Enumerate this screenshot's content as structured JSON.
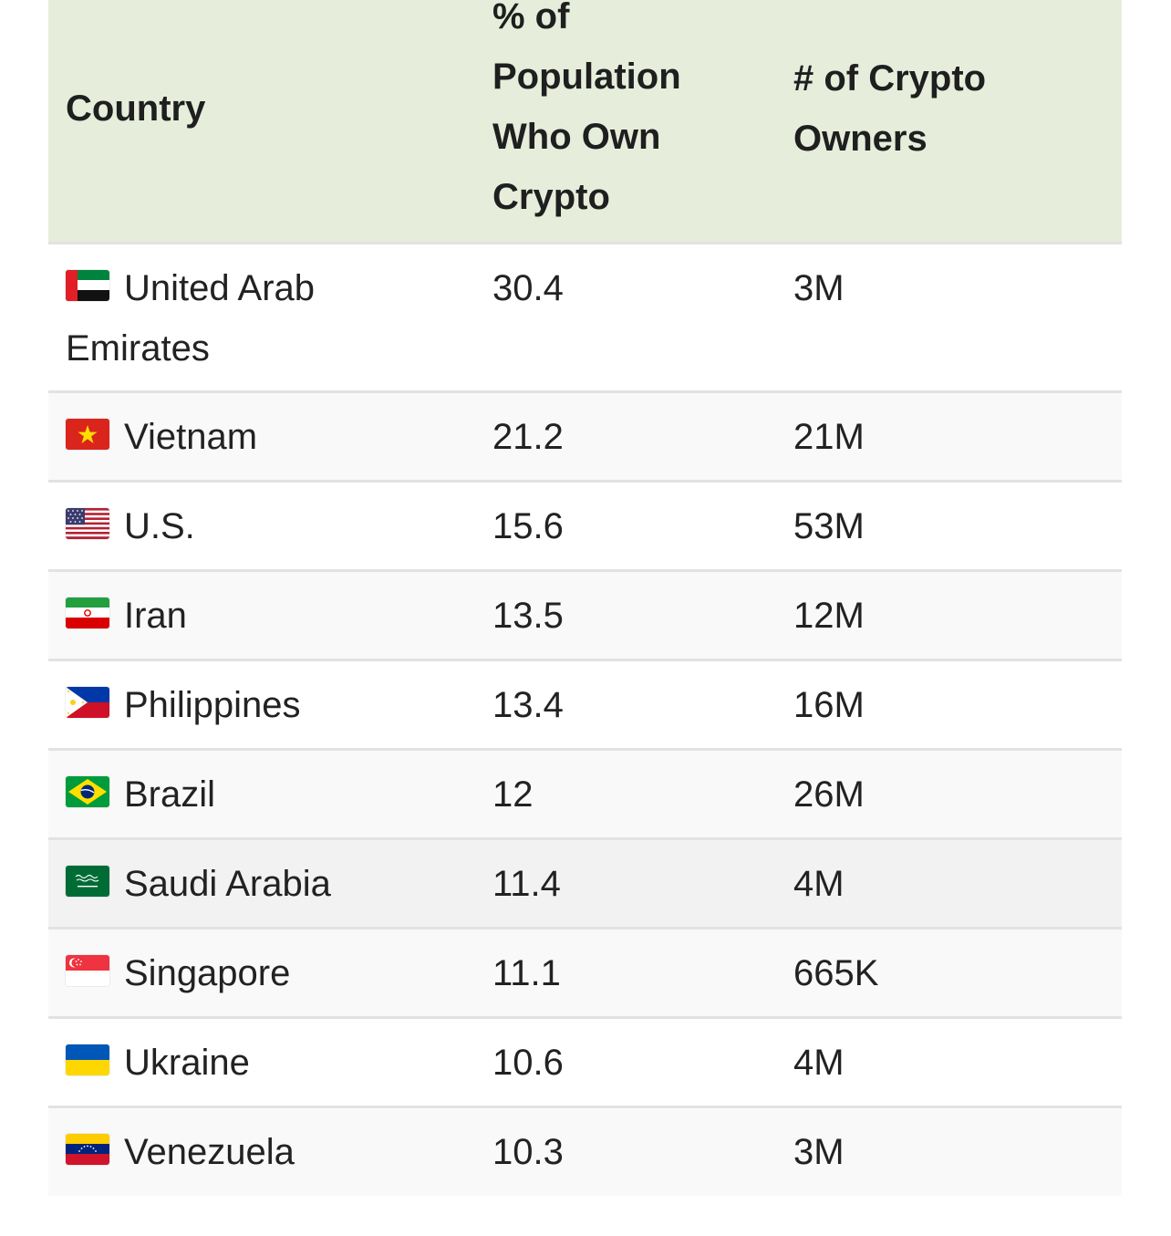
{
  "table": {
    "headers": {
      "country": "Country",
      "percent": "% of Population Who Own Crypto",
      "owners": "# of Crypto Owners"
    },
    "header_background": "#e6eedb",
    "rows": [
      {
        "country": "United Arab Emirates",
        "flag": "uae-flag-icon",
        "percent": "30.4",
        "owners": "3M"
      },
      {
        "country": "Vietnam",
        "flag": "vietnam-flag-icon",
        "percent": "21.2",
        "owners": "21M"
      },
      {
        "country": "U.S.",
        "flag": "us-flag-icon",
        "percent": "15.6",
        "owners": "53M"
      },
      {
        "country": "Iran",
        "flag": "iran-flag-icon",
        "percent": "13.5",
        "owners": "12M"
      },
      {
        "country": "Philippines",
        "flag": "philippines-flag-icon",
        "percent": "13.4",
        "owners": "16M"
      },
      {
        "country": "Brazil",
        "flag": "brazil-flag-icon",
        "percent": "12",
        "owners": "26M"
      },
      {
        "country": "Saudi Arabia",
        "flag": "saudi-arabia-flag-icon",
        "percent": "11.4",
        "owners": "4M"
      },
      {
        "country": "Singapore",
        "flag": "singapore-flag-icon",
        "percent": "11.1",
        "owners": "665K"
      },
      {
        "country": "Ukraine",
        "flag": "ukraine-flag-icon",
        "percent": "10.6",
        "owners": "4M"
      },
      {
        "country": "Venezuela",
        "flag": "venezuela-flag-icon",
        "percent": "10.3",
        "owners": "3M"
      }
    ]
  }
}
